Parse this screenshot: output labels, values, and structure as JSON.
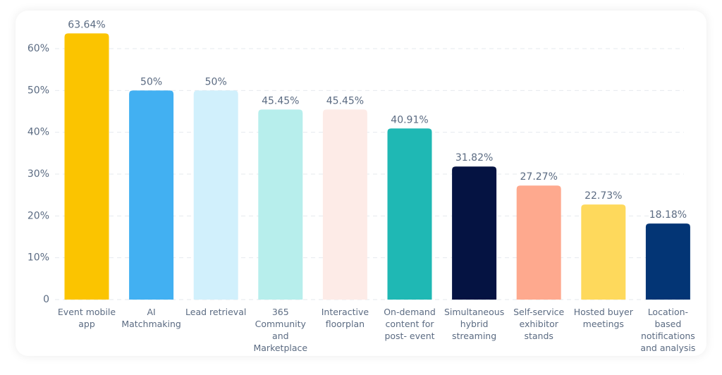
{
  "chart_data": {
    "type": "bar",
    "categories": [
      "Event mobile app",
      "AI Matchmaking",
      "Lead retrieval",
      "365 Community and Marketplace",
      "Interactive floorplan",
      "On-demand content for post- event",
      "Simultaneous hybrid streaming",
      "Self-service exhibitor stands",
      "Hosted buyer meetings",
      "Location-based notifications and analysis"
    ],
    "values": [
      63.64,
      50,
      50,
      45.45,
      45.45,
      40.91,
      31.82,
      27.27,
      22.73,
      18.18
    ],
    "value_labels": [
      "63.64%",
      "50%",
      "50%",
      "45.45%",
      "45.45%",
      "40.91%",
      "31.82%",
      "27.27%",
      "22.73%",
      "18.18%"
    ],
    "colors": [
      "#fbc400",
      "#42b0f2",
      "#d1f0fc",
      "#b7eeec",
      "#fdebe7",
      "#1fb8b4",
      "#051342",
      "#fea98e",
      "#fed95c",
      "#033575"
    ],
    "ylim": [
      0,
      70
    ],
    "yticks": [
      0,
      {
        "value": 10,
        "label": "10%"
      },
      {
        "value": 20,
        "label": "20%"
      },
      {
        "value": 30,
        "label": "30%"
      },
      {
        "value": 40,
        "label": "40%"
      },
      {
        "value": 50,
        "label": "50%"
      },
      {
        "value": 60,
        "label": "60%"
      }
    ],
    "grid": true
  }
}
